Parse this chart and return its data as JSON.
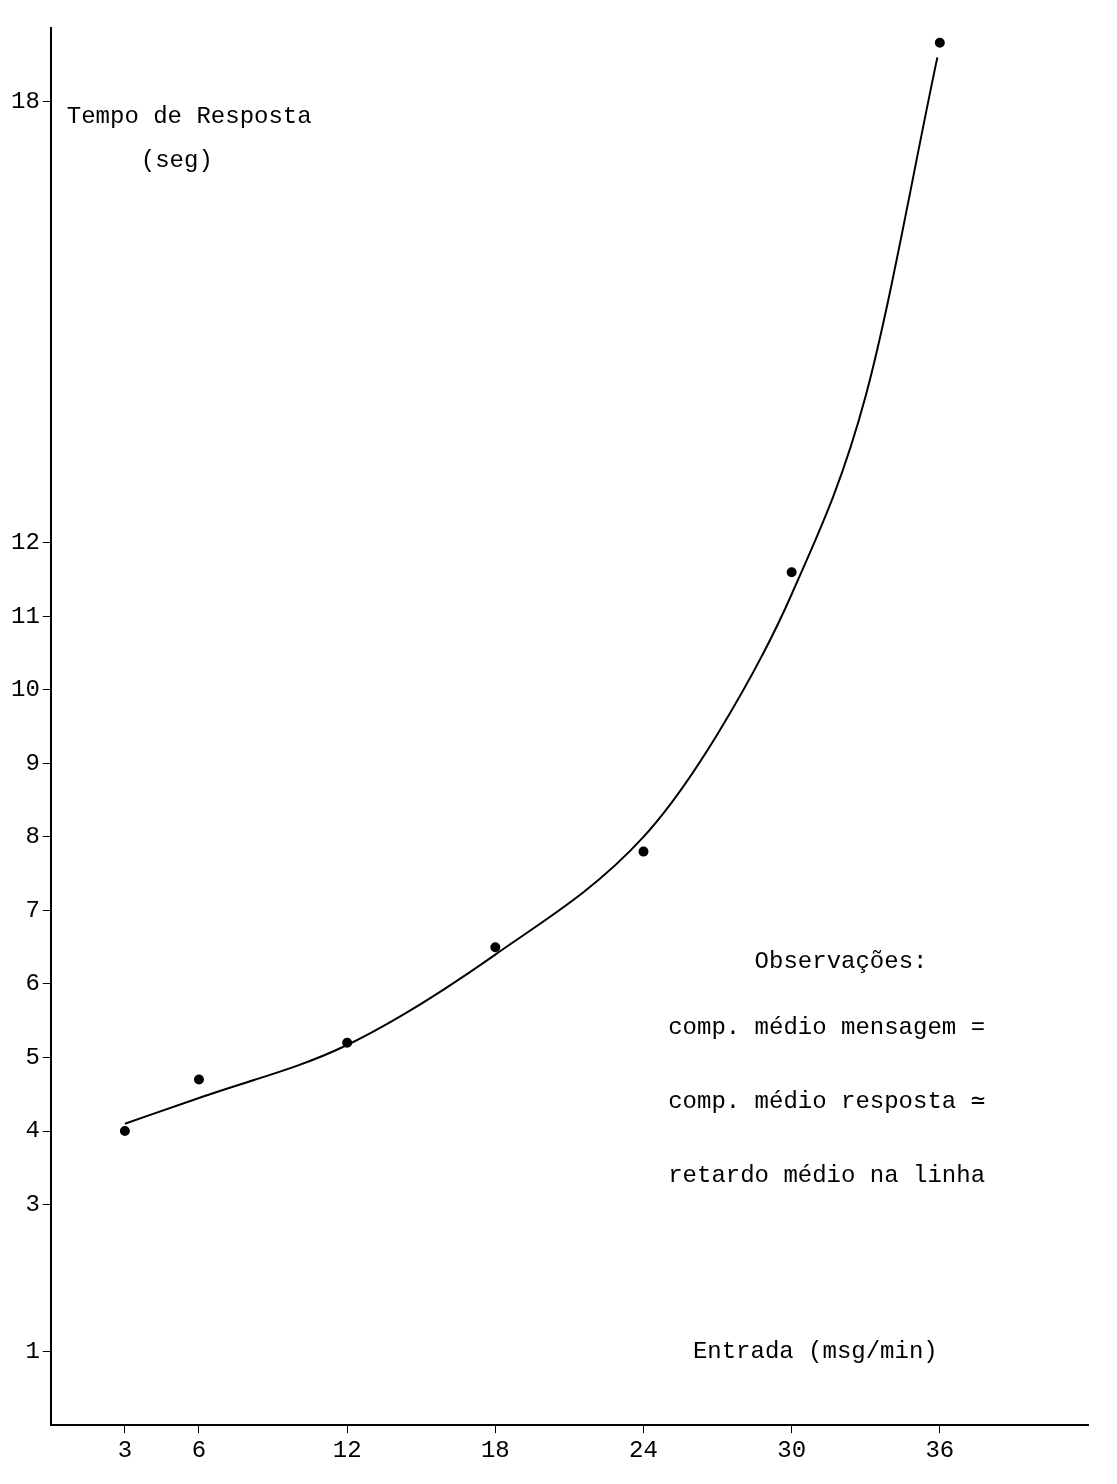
{
  "chart_data": {
    "type": "scatter",
    "xlabel": "Entrada (msg/min)",
    "ylabel": "Tempo de Resposta (seg)",
    "annotations": [
      "Observações:",
      "comp. médio mensagem =",
      "comp. médio resposta ≃",
      "retardo médio na linha"
    ],
    "xlim": [
      0,
      42
    ],
    "xticks": [
      3,
      6,
      12,
      18,
      24,
      30,
      36
    ],
    "ylim": [
      0,
      19
    ],
    "yticks": [
      1,
      3,
      4,
      5,
      6,
      7,
      8,
      9,
      10,
      11,
      12,
      18
    ],
    "grid": false,
    "legend": false,
    "marker": "circle",
    "series": [
      {
        "color": "#000000",
        "x": [
          3,
          6,
          12,
          18,
          24,
          30,
          36
        ],
        "values": [
          4.0,
          4.7,
          5.2,
          6.5,
          7.8,
          11.6,
          18.8
        ]
      },
      {
        "type": "line",
        "color": "#000000",
        "marker": "none",
        "x": [
          3,
          6,
          12,
          18,
          24,
          27,
          30,
          33,
          35.9
        ],
        "values": [
          4.1,
          4.45,
          5.17,
          6.4,
          8.0,
          9.4,
          11.3,
          14.0,
          18.6
        ]
      }
    ]
  }
}
